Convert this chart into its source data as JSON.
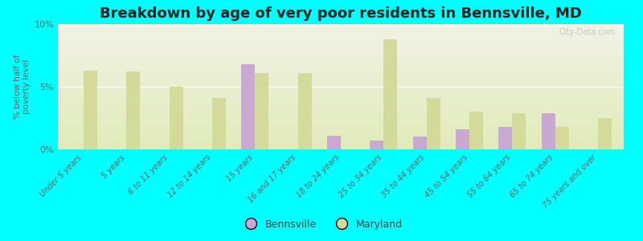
{
  "title": "Breakdown by age of very poor residents in Bennsville, MD",
  "ylabel": "% below half of\npoverty level",
  "categories": [
    "Under 5 years",
    "5 years",
    "6 to 11 years",
    "12 to 14 years",
    "15 years",
    "16 and 17 years",
    "18 to 24 years",
    "25 to 34 years",
    "35 to 44 years",
    "45 to 54 years",
    "55 to 64 years",
    "65 to 74 years",
    "75 years and over"
  ],
  "bennsville": [
    0,
    0,
    0,
    0,
    6.8,
    0,
    1.1,
    0.7,
    1.0,
    1.6,
    1.8,
    2.9,
    0
  ],
  "maryland": [
    6.3,
    6.2,
    5.0,
    4.1,
    6.1,
    6.1,
    0,
    8.8,
    4.1,
    3.0,
    2.9,
    1.8,
    2.5
  ],
  "bennsville_color": "#c9a8d4",
  "maryland_color": "#d4db9a",
  "background_color": "#00ffff",
  "plot_bg_top": "#f2f2e6",
  "plot_bg_bottom": "#e0ebb8",
  "ylim": [
    0,
    10
  ],
  "yticks": [
    0,
    5,
    10
  ],
  "ytick_labels": [
    "0%",
    "5%",
    "10%"
  ],
  "bar_width": 0.32,
  "title_fontsize": 13,
  "label_fontsize": 7,
  "watermark": "City-Data.com"
}
